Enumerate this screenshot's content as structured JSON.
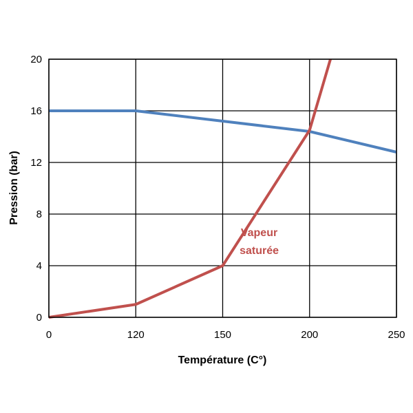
{
  "chart_data": {
    "type": "line",
    "title": "",
    "xlabel": "Température (C°)",
    "ylabel": "Pression (bar)",
    "x_categories": [
      "0",
      "120",
      "150",
      "200",
      "250"
    ],
    "xlim": [
      0,
      4
    ],
    "ylim": [
      0,
      20
    ],
    "yticks": [
      0,
      4,
      8,
      12,
      16,
      20
    ],
    "grid": true,
    "series": [
      {
        "name": "",
        "color": "#4F81BD",
        "points": [
          [
            0,
            16
          ],
          [
            1,
            16
          ],
          [
            2,
            15.2
          ],
          [
            3,
            14.4
          ],
          [
            4,
            12.8
          ]
        ]
      },
      {
        "name": "Vapeur saturée",
        "color": "#C0504D",
        "points": [
          [
            0,
            0
          ],
          [
            1,
            1
          ],
          [
            2,
            4
          ],
          [
            3,
            14.5
          ],
          [
            3.24,
            20
          ]
        ]
      }
    ],
    "annotations": [
      {
        "text_lines": [
          "Vapeur",
          "saturée"
        ],
        "color": "#C0504D",
        "anchor": [
          2.42,
          6.3
        ]
      }
    ]
  }
}
